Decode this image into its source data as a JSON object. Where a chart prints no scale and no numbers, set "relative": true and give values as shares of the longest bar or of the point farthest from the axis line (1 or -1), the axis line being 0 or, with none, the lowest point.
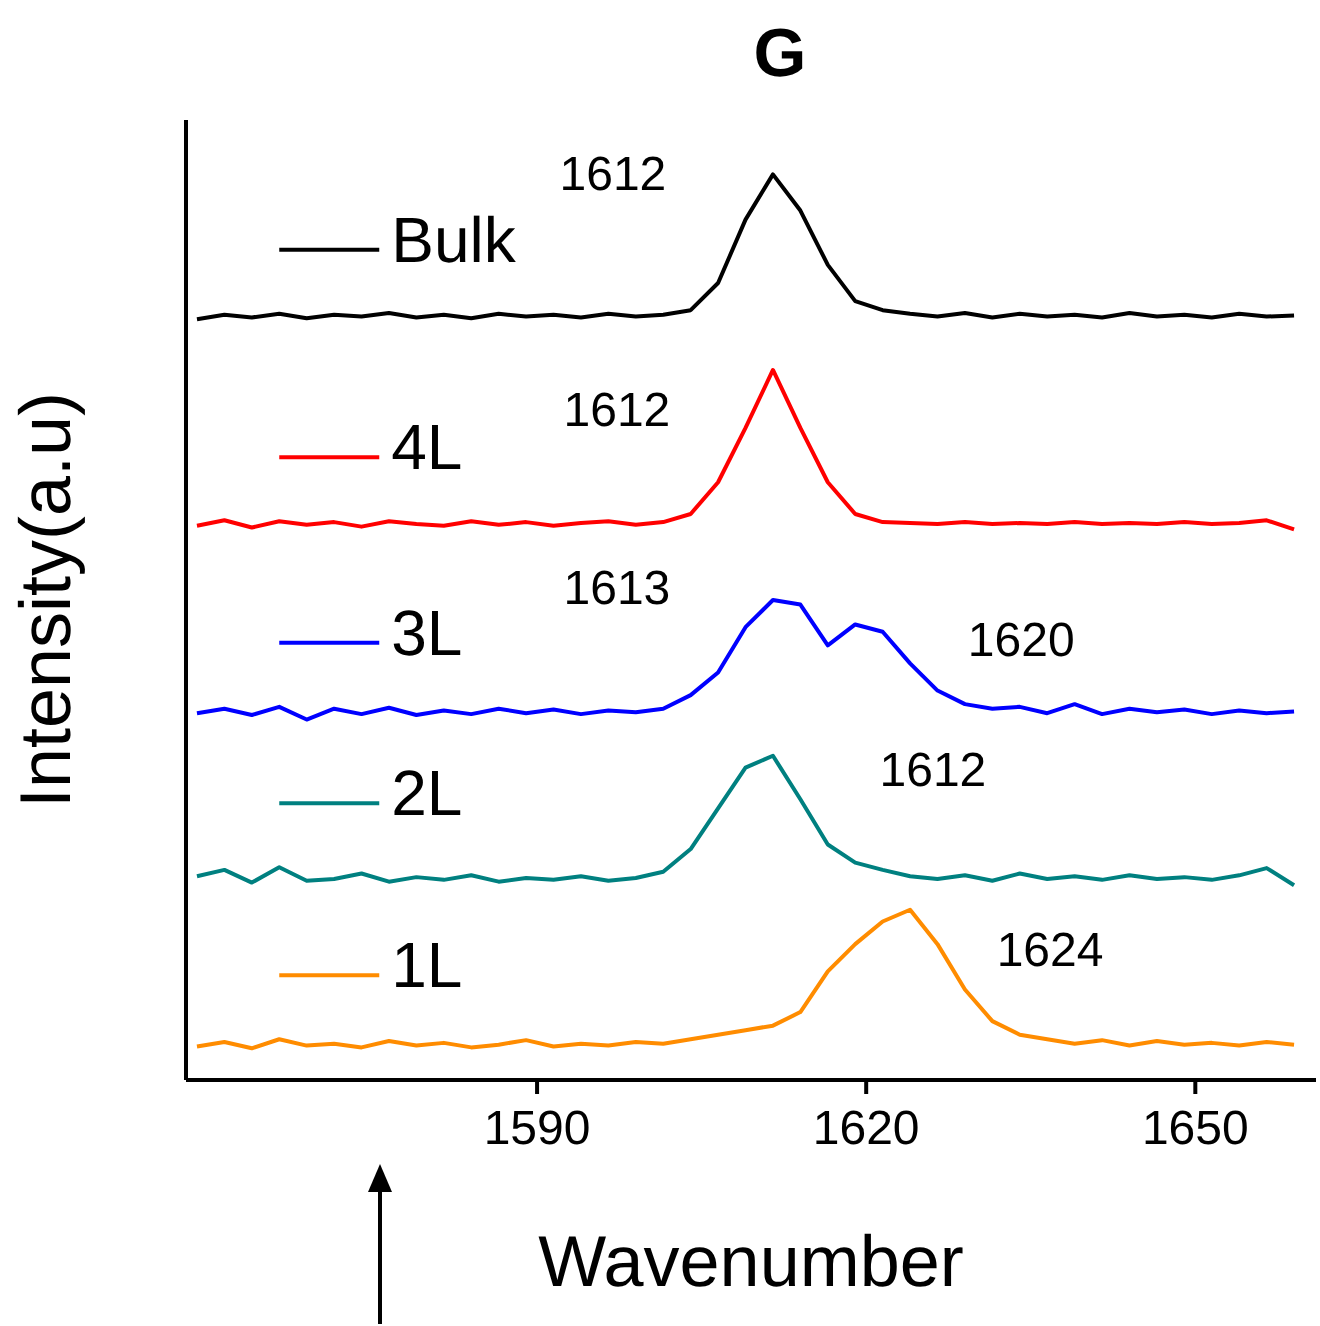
{
  "chart_data": {
    "type": "line",
    "title": "G",
    "xlabel": "Wavenumber",
    "ylabel": "Intensity(a.u)",
    "relative": true,
    "xlim": [
      1558,
      1661
    ],
    "xticks": [
      1590,
      1620,
      1650
    ],
    "legend": "left",
    "grid": false,
    "marker": "none",
    "line_style": "solid",
    "x": [
      1559,
      1561.5,
      1564,
      1566.5,
      1569,
      1571.5,
      1574,
      1576.5,
      1579,
      1581.5,
      1584,
      1586.5,
      1589,
      1591.5,
      1594,
      1596.5,
      1599,
      1601.5,
      1604,
      1606.5,
      1609,
      1611.5,
      1614,
      1616.5,
      1619,
      1621.5,
      1624,
      1626.5,
      1629,
      1631.5,
      1634,
      1636.5,
      1639,
      1641.5,
      1644,
      1646.5,
      1649,
      1651.5,
      1654,
      1656.5,
      1659
    ],
    "series": [
      {
        "name": "Bulk",
        "color": "#000000",
        "values": [
          0.84,
          0.845,
          0.842,
          0.846,
          0.841,
          0.845,
          0.843,
          0.847,
          0.842,
          0.845,
          0.841,
          0.846,
          0.843,
          0.845,
          0.842,
          0.846,
          0.843,
          0.845,
          0.85,
          0.88,
          0.95,
          1.0,
          0.96,
          0.9,
          0.86,
          0.85,
          0.846,
          0.843,
          0.847,
          0.842,
          0.846,
          0.843,
          0.845,
          0.842,
          0.847,
          0.843,
          0.845,
          0.842,
          0.846,
          0.843,
          0.844
        ]
      },
      {
        "name": "4L",
        "color": "#ff0000",
        "values": [
          0.612,
          0.618,
          0.61,
          0.617,
          0.613,
          0.616,
          0.611,
          0.617,
          0.614,
          0.612,
          0.617,
          0.613,
          0.616,
          0.612,
          0.615,
          0.617,
          0.613,
          0.616,
          0.625,
          0.66,
          0.72,
          0.784,
          0.72,
          0.66,
          0.625,
          0.616,
          0.615,
          0.614,
          0.616,
          0.614,
          0.615,
          0.614,
          0.616,
          0.614,
          0.615,
          0.614,
          0.616,
          0.614,
          0.615,
          0.618,
          0.608
        ]
      },
      {
        "name": "3L",
        "color": "#0000ff",
        "values": [
          0.405,
          0.41,
          0.403,
          0.412,
          0.398,
          0.41,
          0.404,
          0.411,
          0.403,
          0.408,
          0.404,
          0.41,
          0.405,
          0.409,
          0.404,
          0.408,
          0.406,
          0.41,
          0.425,
          0.45,
          0.5,
          0.53,
          0.525,
          0.48,
          0.503,
          0.495,
          0.46,
          0.43,
          0.415,
          0.41,
          0.412,
          0.405,
          0.415,
          0.404,
          0.41,
          0.406,
          0.409,
          0.404,
          0.408,
          0.405,
          0.407
        ]
      },
      {
        "name": "2L",
        "color": "#008080",
        "values": [
          0.225,
          0.232,
          0.218,
          0.235,
          0.22,
          0.222,
          0.228,
          0.219,
          0.224,
          0.221,
          0.226,
          0.219,
          0.223,
          0.221,
          0.225,
          0.22,
          0.223,
          0.23,
          0.255,
          0.3,
          0.345,
          0.358,
          0.31,
          0.26,
          0.24,
          0.232,
          0.225,
          0.222,
          0.226,
          0.22,
          0.228,
          0.222,
          0.225,
          0.221,
          0.226,
          0.222,
          0.224,
          0.221,
          0.226,
          0.234,
          0.215
        ]
      },
      {
        "name": "1L",
        "color": "#ff8c00",
        "values": [
          0.037,
          0.042,
          0.035,
          0.045,
          0.038,
          0.04,
          0.036,
          0.043,
          0.038,
          0.041,
          0.036,
          0.039,
          0.044,
          0.037,
          0.04,
          0.038,
          0.042,
          0.04,
          0.045,
          0.05,
          0.055,
          0.06,
          0.075,
          0.12,
          0.15,
          0.175,
          0.188,
          0.15,
          0.1,
          0.065,
          0.05,
          0.045,
          0.04,
          0.044,
          0.038,
          0.043,
          0.039,
          0.041,
          0.038,
          0.042,
          0.039
        ]
      }
    ],
    "annotations": [
      {
        "text": "1612",
        "x": 1611.5,
        "y": 1.0
      },
      {
        "text": "1612",
        "x": 1611.5,
        "y": 0.784
      },
      {
        "text": "1613",
        "x": 1611.5,
        "y": 0.53
      },
      {
        "text": "1620",
        "x": 1619,
        "y": 0.503
      },
      {
        "text": "1612",
        "x": 1611.5,
        "y": 0.358
      },
      {
        "text": "1624",
        "x": 1624,
        "y": 0.188
      }
    ]
  }
}
